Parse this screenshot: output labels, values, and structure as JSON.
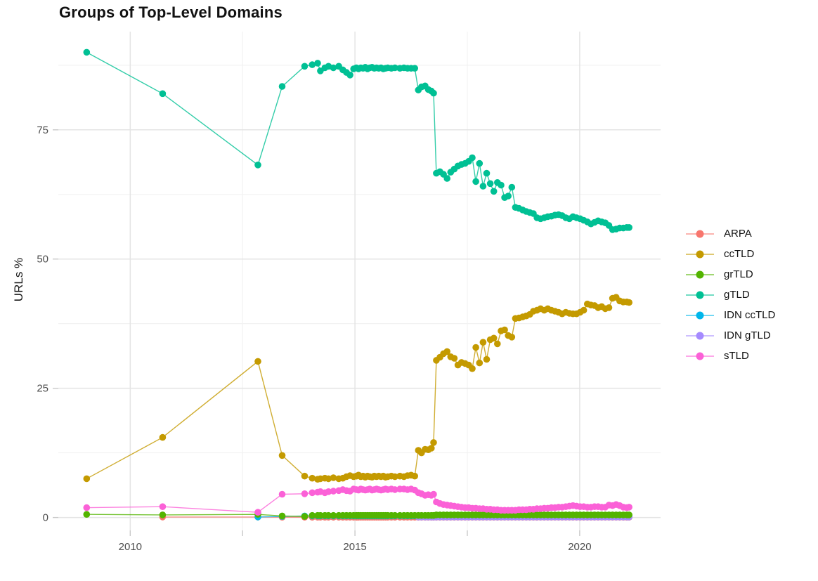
{
  "page": {
    "background": "#FFFFFF"
  },
  "colors": {
    "axis_text": "#4D4D4D",
    "title_text": "#111111",
    "grid_major": "#E4E4E4",
    "grid_minor": "#F1F1F1",
    "tick_mark": "#C9C9C9",
    "background": "#FFFFFF"
  },
  "chart_data": {
    "type": "line",
    "title": "Groups of Top-Level Domains",
    "xlabel": "",
    "ylabel": "URLs %",
    "legend_position": "right",
    "grid": true,
    "xlim": [
      2008.4,
      2021.8
    ],
    "ylim": [
      -2.5,
      94
    ],
    "x_ticks": {
      "major": [
        2010,
        2015,
        2020
      ],
      "minor": [
        2012.5,
        2017.5
      ],
      "labels": [
        "2010",
        "2015",
        "2020"
      ]
    },
    "y_ticks": {
      "major": [
        0,
        25,
        50,
        75
      ],
      "minor": [
        12.5,
        37.5,
        62.5,
        87.5
      ],
      "labels": [
        "0",
        "25",
        "50",
        "75"
      ]
    },
    "x": [
      2009.03,
      2010.72,
      2012.84,
      2013.38,
      2013.88,
      2014.05,
      2014.17,
      2014.23,
      2014.33,
      2014.41,
      2014.52,
      2014.64,
      2014.73,
      2014.81,
      2014.89,
      2014.97,
      2015.03,
      2015.08,
      2015.13,
      2015.18,
      2015.23,
      2015.28,
      2015.33,
      2015.38,
      2015.43,
      2015.48,
      2015.53,
      2015.58,
      2015.63,
      2015.68,
      2015.73,
      2015.81,
      2015.89,
      2016.0,
      2016.09,
      2016.17,
      2016.25,
      2016.33,
      2016.41,
      2016.48,
      2016.56,
      2016.63,
      2016.7,
      2016.75,
      2016.81,
      2016.89,
      2016.97,
      2017.05,
      2017.13,
      2017.21,
      2017.29,
      2017.37,
      2017.45,
      2017.53,
      2017.61,
      2017.69,
      2017.77,
      2017.85,
      2017.93,
      2018.01,
      2018.09,
      2018.17,
      2018.25,
      2018.33,
      2018.41,
      2018.49,
      2018.57,
      2018.65,
      2018.73,
      2018.81,
      2018.89,
      2018.97,
      2019.05,
      2019.13,
      2019.21,
      2019.29,
      2019.37,
      2019.45,
      2019.53,
      2019.61,
      2019.69,
      2019.77,
      2019.85,
      2019.93,
      2020.01,
      2020.09,
      2020.17,
      2020.25,
      2020.33,
      2020.41,
      2020.49,
      2020.57,
      2020.65,
      2020.73,
      2020.81,
      2020.89,
      2020.97,
      2021.05,
      2021.1
    ],
    "series": [
      {
        "name": "ARPA",
        "color": "#F8766D",
        "values": [
          null,
          0.1,
          0.1,
          0.05,
          0.05,
          0.05,
          0.05,
          0.05,
          0.05,
          0.05,
          0.05,
          0.05,
          0.05,
          0.05,
          0.05,
          0.05,
          0.05,
          0.05,
          0.05,
          0.05,
          0.05,
          0.05,
          0.05,
          0.05,
          0.05,
          0.05,
          0.05,
          0.05,
          0.05,
          0.05,
          0.05,
          0.05,
          0.05,
          0.05,
          0.05,
          0.05,
          0.05,
          0.05,
          0.05,
          0.05,
          0.05,
          0.05,
          0.05,
          0.05,
          0.05,
          0.05,
          0.05,
          0.05,
          0.05,
          0.05,
          0.05,
          0.05,
          0.05,
          0.05,
          0.05,
          0.05,
          0.05,
          0.05,
          0.05,
          0.05,
          0.05,
          0.05,
          0.05,
          0.05,
          0.05,
          0.05,
          0.05,
          0.05,
          0.05,
          0.05,
          0.05,
          0.05,
          0.05,
          0.05,
          0.05,
          0.05,
          0.05,
          0.05,
          0.05,
          0.05,
          0.05,
          0.05,
          0.05,
          0.05,
          0.05,
          0.05,
          0.05,
          0.05,
          0.05,
          0.05,
          0.05,
          0.05,
          0.05,
          0.05,
          0.05,
          0.05,
          0.05,
          0.05,
          0.05
        ]
      },
      {
        "name": "ccTLD",
        "color": "#C49A00",
        "values": [
          7.5,
          15.5,
          30.2,
          12.0,
          8.0,
          7.6,
          7.4,
          7.5,
          7.6,
          7.5,
          7.7,
          7.5,
          7.6,
          7.9,
          8.1,
          7.9,
          8.0,
          8.2,
          7.9,
          8.0,
          7.8,
          8.0,
          7.9,
          7.8,
          8.0,
          7.9,
          8.0,
          7.9,
          8.0,
          7.8,
          7.9,
          8.0,
          7.9,
          8.0,
          7.9,
          8.1,
          8.2,
          8.0,
          13.0,
          12.5,
          13.2,
          13.1,
          13.4,
          14.5,
          30.4,
          31.0,
          31.7,
          32.1,
          31.1,
          30.8,
          29.5,
          30.0,
          29.8,
          29.5,
          28.8,
          32.9,
          29.9,
          33.9,
          30.6,
          34.4,
          34.7,
          33.6,
          36.1,
          36.3,
          35.2,
          34.9,
          38.5,
          38.6,
          38.8,
          39.0,
          39.3,
          39.9,
          40.1,
          40.4,
          40.1,
          40.4,
          40.1,
          39.9,
          39.7,
          39.4,
          39.7,
          39.5,
          39.4,
          39.4,
          39.7,
          40.1,
          41.3,
          41.1,
          41.0,
          40.6,
          40.8,
          40.4,
          40.6,
          42.4,
          42.6,
          41.9,
          41.7,
          41.7,
          41.6
        ]
      },
      {
        "name": "grTLD",
        "color": "#53B400",
        "values": [
          0.6,
          0.5,
          0.6,
          0.3,
          0.2,
          0.4,
          0.4,
          0.4,
          0.4,
          0.4,
          0.4,
          0.4,
          0.4,
          0.4,
          0.4,
          0.4,
          0.4,
          0.4,
          0.4,
          0.4,
          0.4,
          0.4,
          0.4,
          0.4,
          0.4,
          0.4,
          0.4,
          0.4,
          0.4,
          0.4,
          0.4,
          0.4,
          0.4,
          0.4,
          0.4,
          0.4,
          0.4,
          0.4,
          0.4,
          0.4,
          0.4,
          0.4,
          0.4,
          0.4,
          0.5,
          0.5,
          0.5,
          0.5,
          0.5,
          0.5,
          0.5,
          0.5,
          0.5,
          0.5,
          0.5,
          0.5,
          0.5,
          0.5,
          0.5,
          0.5,
          0.5,
          0.5,
          0.5,
          0.5,
          0.5,
          0.5,
          0.5,
          0.5,
          0.5,
          0.5,
          0.5,
          0.5,
          0.5,
          0.5,
          0.5,
          0.5,
          0.5,
          0.5,
          0.5,
          0.5,
          0.5,
          0.5,
          0.5,
          0.5,
          0.5,
          0.5,
          0.5,
          0.5,
          0.5,
          0.5,
          0.5,
          0.5,
          0.5,
          0.5,
          0.5,
          0.5,
          0.5,
          0.5,
          0.5
        ]
      },
      {
        "name": "gTLD",
        "color": "#00C094",
        "values": [
          90.0,
          82.0,
          68.2,
          83.4,
          87.3,
          87.6,
          87.9,
          86.4,
          87.0,
          87.3,
          87.0,
          87.3,
          86.6,
          86.1,
          85.6,
          86.8,
          87.0,
          86.8,
          87.0,
          86.9,
          87.1,
          86.8,
          87.0,
          87.1,
          86.9,
          87.0,
          86.9,
          87.0,
          86.8,
          86.9,
          87.0,
          86.9,
          87.0,
          86.9,
          87.0,
          86.9,
          86.9,
          86.9,
          82.7,
          83.3,
          83.5,
          82.8,
          82.5,
          82.1,
          66.6,
          66.9,
          66.4,
          65.6,
          66.8,
          67.4,
          68.0,
          68.3,
          68.5,
          68.9,
          69.6,
          65.0,
          68.5,
          64.1,
          66.6,
          64.6,
          63.1,
          64.8,
          64.3,
          61.9,
          62.2,
          63.9,
          60.0,
          59.8,
          59.5,
          59.2,
          59.0,
          58.8,
          58.0,
          57.8,
          58.0,
          58.2,
          58.3,
          58.5,
          58.6,
          58.4,
          58.0,
          57.8,
          58.2,
          58.0,
          57.8,
          57.5,
          57.2,
          56.8,
          57.1,
          57.4,
          57.2,
          57.0,
          56.5,
          55.7,
          55.8,
          56.0,
          56.0,
          56.1,
          56.1
        ]
      },
      {
        "name": "IDN ccTLD",
        "color": "#00B6EB",
        "values": [
          null,
          null,
          0.1,
          0.2,
          0.3,
          0.3,
          0.3,
          0.3,
          0.3,
          0.3,
          0.3,
          0.3,
          0.3,
          0.3,
          0.3,
          0.3,
          0.3,
          0.3,
          0.3,
          0.3,
          0.3,
          0.3,
          0.3,
          0.3,
          0.3,
          0.3,
          0.3,
          0.3,
          0.3,
          0.3,
          0.3,
          0.3,
          0.3,
          0.3,
          0.3,
          0.3,
          0.3,
          0.3,
          0.3,
          0.3,
          0.3,
          0.3,
          0.3,
          0.3,
          0.2,
          0.2,
          0.2,
          0.2,
          0.2,
          0.2,
          0.2,
          0.2,
          0.2,
          0.2,
          0.2,
          0.2,
          0.2,
          0.2,
          0.2,
          0.2,
          0.2,
          0.2,
          0.2,
          0.2,
          0.2,
          0.2,
          0.2,
          0.2,
          0.2,
          0.2,
          0.2,
          0.2,
          0.2,
          0.2,
          0.2,
          0.2,
          0.2,
          0.2,
          0.2,
          0.2,
          0.2,
          0.2,
          0.2,
          0.2,
          0.2,
          0.2,
          0.2,
          0.2,
          0.2,
          0.2,
          0.2,
          0.2,
          0.2,
          0.2,
          0.2,
          0.2,
          0.2,
          0.2,
          0.2
        ]
      },
      {
        "name": "IDN gTLD",
        "color": "#A58AFF",
        "values": [
          null,
          null,
          null,
          null,
          null,
          null,
          null,
          null,
          null,
          null,
          null,
          null,
          null,
          null,
          null,
          null,
          null,
          null,
          null,
          null,
          null,
          null,
          null,
          null,
          null,
          null,
          null,
          null,
          null,
          null,
          null,
          null,
          null,
          null,
          null,
          null,
          null,
          null,
          0.1,
          0.1,
          0.1,
          0.1,
          0.1,
          0.1,
          0.1,
          0.1,
          0.1,
          0.1,
          0.1,
          0.1,
          0.1,
          0.1,
          0.1,
          0.1,
          0.1,
          0.1,
          0.1,
          0.1,
          0.1,
          0.1,
          0.1,
          0.1,
          0.1,
          0.1,
          0.1,
          0.1,
          0.1,
          0.1,
          0.1,
          0.1,
          0.1,
          0.1,
          0.1,
          0.1,
          0.1,
          0.1,
          0.1,
          0.1,
          0.1,
          0.1,
          0.1,
          0.1,
          0.1,
          0.1,
          0.1,
          0.1,
          0.1,
          0.1,
          0.1,
          0.1,
          0.1,
          0.1,
          0.1,
          0.1,
          0.1,
          0.1,
          0.1,
          0.1,
          0.1
        ]
      },
      {
        "name": "sTLD",
        "color": "#FB61D7",
        "values": [
          1.9,
          2.1,
          1.0,
          4.5,
          4.6,
          4.8,
          4.9,
          5.0,
          4.8,
          5.0,
          5.1,
          5.2,
          5.4,
          5.2,
          5.1,
          5.5,
          5.4,
          5.3,
          5.5,
          5.4,
          5.3,
          5.4,
          5.5,
          5.3,
          5.4,
          5.5,
          5.4,
          5.3,
          5.4,
          5.5,
          5.4,
          5.5,
          5.4,
          5.5,
          5.5,
          5.4,
          5.5,
          5.3,
          4.8,
          4.6,
          4.3,
          4.4,
          4.3,
          4.5,
          3.0,
          2.7,
          2.5,
          2.4,
          2.3,
          2.2,
          2.1,
          2.0,
          1.9,
          1.9,
          1.8,
          1.8,
          1.7,
          1.7,
          1.6,
          1.6,
          1.5,
          1.5,
          1.4,
          1.4,
          1.4,
          1.4,
          1.4,
          1.5,
          1.5,
          1.5,
          1.6,
          1.6,
          1.7,
          1.7,
          1.8,
          1.8,
          1.9,
          1.9,
          2.0,
          2.0,
          2.1,
          2.2,
          2.3,
          2.2,
          2.1,
          2.1,
          2.0,
          2.0,
          2.1,
          2.1,
          2.0,
          2.0,
          2.4,
          2.3,
          2.5,
          2.3,
          2.0,
          1.9,
          2.0
        ]
      }
    ]
  }
}
